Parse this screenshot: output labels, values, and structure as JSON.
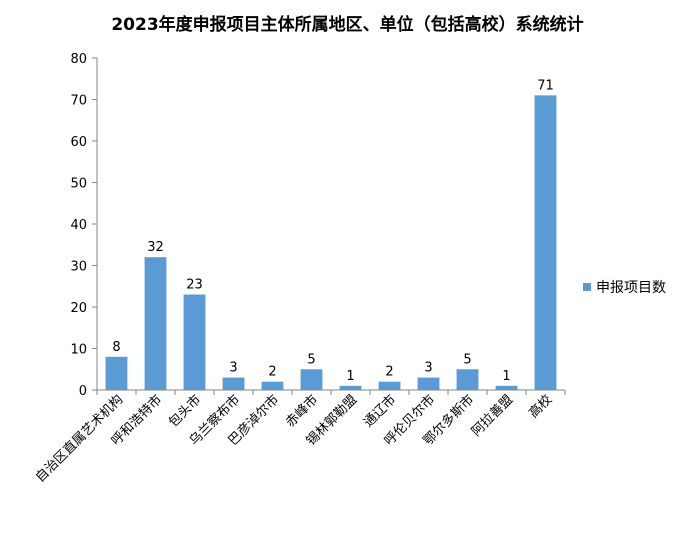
{
  "chart_data": {
    "type": "bar",
    "title": "2023年度申报项目主体所属地区、单位（包括高校）系统统计",
    "categories": [
      "自治区直属艺术机构",
      "呼和浩特市",
      "包头市",
      "乌兰察布市",
      "巴彦淖尔市",
      "赤峰市",
      "锡林郭勒盟",
      "通辽市",
      "呼伦贝尔市",
      "鄂尔多斯市",
      "阿拉善盟",
      "高校"
    ],
    "series": [
      {
        "name": "申报项目数",
        "values": [
          8,
          32,
          23,
          3,
          2,
          5,
          1,
          2,
          3,
          5,
          1,
          71
        ],
        "color": "#5B9BD5"
      }
    ],
    "ylim": [
      0,
      80
    ],
    "yticks": [
      0,
      10,
      20,
      30,
      40,
      50,
      60,
      70,
      80
    ],
    "xlabel": "",
    "ylabel": "",
    "grid": false,
    "legend": "right",
    "data_labels": true
  }
}
